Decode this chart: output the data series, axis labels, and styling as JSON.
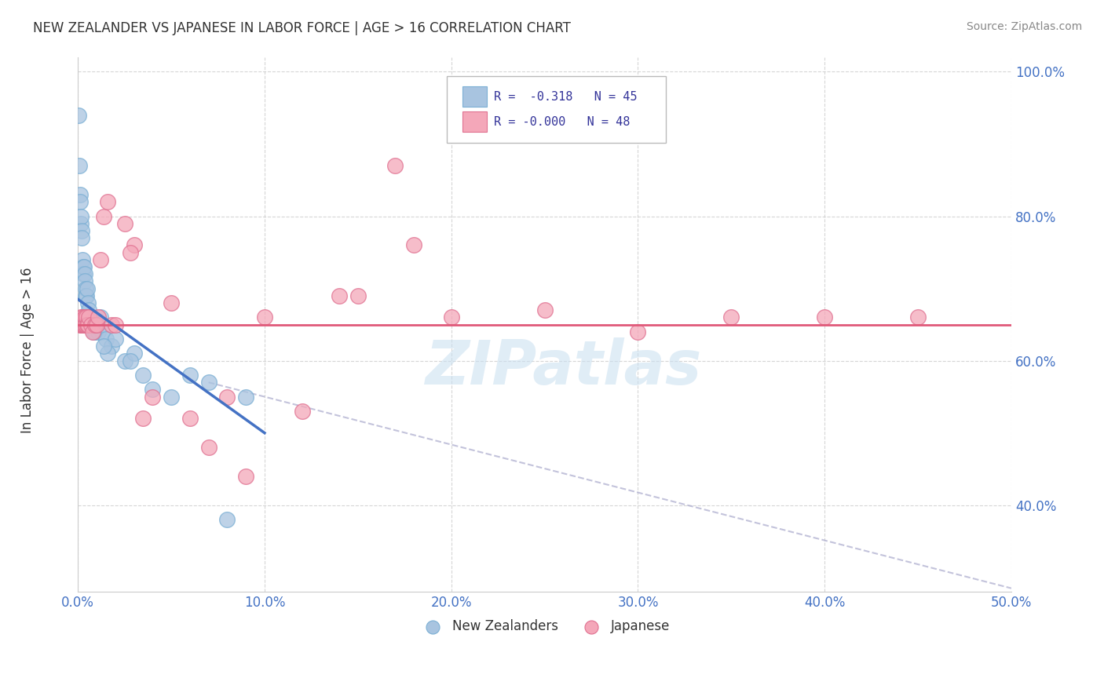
{
  "title": "NEW ZEALANDER VS JAPANESE IN LABOR FORCE | AGE > 16 CORRELATION CHART",
  "source": "Source: ZipAtlas.com",
  "ylabel": "In Labor Force | Age > 16",
  "xlim": [
    0.0,
    50.0
  ],
  "ylim": [
    28.0,
    102.0
  ],
  "xticks": [
    0.0,
    10.0,
    20.0,
    30.0,
    40.0,
    50.0
  ],
  "yticks": [
    40.0,
    60.0,
    80.0,
    100.0
  ],
  "ytick_labels": [
    "40.0%",
    "60.0%",
    "80.0%",
    "100.0%"
  ],
  "xtick_labels": [
    "0.0%",
    "10.0%",
    "20.0%",
    "30.0%",
    "40.0%",
    "50.0%"
  ],
  "blue_color": "#a8c4e0",
  "pink_color": "#f4a7b9",
  "blue_line_color": "#4472C4",
  "pink_line_color": "#e05a7a",
  "dash_color": "#aaaacc",
  "grid_color": "#cccccc",
  "bg_color": "#ffffff",
  "blue_scatter_x": [
    0.05,
    0.08,
    0.1,
    0.12,
    0.15,
    0.18,
    0.2,
    0.22,
    0.25,
    0.28,
    0.3,
    0.32,
    0.35,
    0.38,
    0.4,
    0.42,
    0.45,
    0.5,
    0.55,
    0.6,
    0.7,
    0.8,
    0.9,
    1.0,
    1.1,
    1.2,
    1.3,
    1.5,
    1.8,
    2.0,
    2.5,
    3.0,
    3.5,
    1.6,
    1.4,
    4.0,
    5.0,
    6.0,
    7.0,
    8.0,
    2.8,
    9.0,
    0.65,
    0.75,
    0.85
  ],
  "blue_scatter_y": [
    94.0,
    87.0,
    83.0,
    82.0,
    79.0,
    80.0,
    78.0,
    77.0,
    74.0,
    73.0,
    72.0,
    73.0,
    72.0,
    71.0,
    70.0,
    69.0,
    69.0,
    70.0,
    68.0,
    67.0,
    66.0,
    65.0,
    64.0,
    65.0,
    64.0,
    66.0,
    64.0,
    63.0,
    62.0,
    63.0,
    60.0,
    61.0,
    58.0,
    61.0,
    62.0,
    56.0,
    55.0,
    58.0,
    57.0,
    38.0,
    60.0,
    55.0,
    66.0,
    65.0,
    64.0
  ],
  "pink_scatter_x": [
    0.1,
    0.15,
    0.18,
    0.2,
    0.25,
    0.28,
    0.3,
    0.32,
    0.35,
    0.38,
    0.4,
    0.42,
    0.45,
    0.5,
    0.55,
    0.6,
    0.7,
    0.8,
    0.9,
    1.0,
    1.1,
    1.2,
    1.4,
    1.6,
    1.8,
    2.0,
    2.5,
    3.0,
    4.0,
    5.0,
    6.0,
    7.0,
    8.0,
    9.0,
    10.0,
    12.0,
    15.0,
    18.0,
    20.0,
    25.0,
    30.0,
    35.0,
    40.0,
    45.0,
    3.5,
    2.8,
    14.0,
    17.0
  ],
  "pink_scatter_y": [
    65.0,
    66.0,
    65.0,
    65.0,
    66.0,
    65.0,
    65.0,
    65.0,
    66.0,
    66.0,
    65.0,
    65.0,
    66.0,
    65.0,
    65.0,
    66.0,
    65.0,
    64.0,
    65.0,
    65.0,
    66.0,
    74.0,
    80.0,
    82.0,
    65.0,
    65.0,
    79.0,
    76.0,
    55.0,
    68.0,
    52.0,
    48.0,
    55.0,
    44.0,
    66.0,
    53.0,
    69.0,
    76.0,
    66.0,
    67.0,
    64.0,
    66.0,
    66.0,
    66.0,
    52.0,
    75.0,
    69.0,
    87.0
  ],
  "blue_line_x0": 0.0,
  "blue_line_y0": 68.5,
  "blue_line_x1": 10.0,
  "blue_line_y1": 50.0,
  "pink_line_y": 65.0,
  "dash_line_x0": 7.0,
  "dash_line_y0": 57.0,
  "dash_line_x1": 50.0,
  "dash_line_y1": 28.5,
  "watermark_text": "ZIPatlas",
  "legend_text1": "R =  -0.318   N = 45",
  "legend_text2": "R = -0.000   N = 48"
}
